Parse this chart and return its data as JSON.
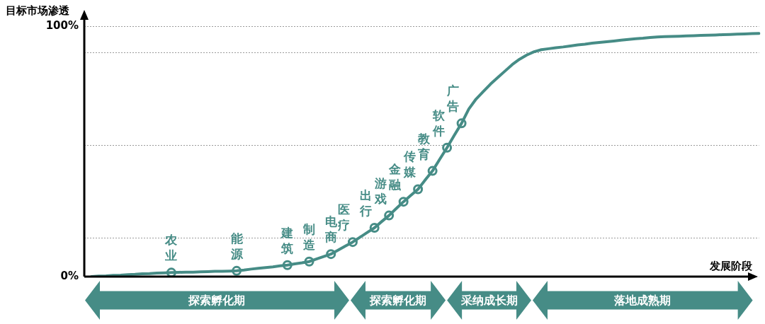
{
  "chart_data": {
    "type": "line",
    "ylabel": "目标市场渗透",
    "xlabel": "发展阶段",
    "categories": [
      null,
      null,
      null,
      null,
      null,
      null,
      null,
      null,
      null,
      null,
      null,
      null,
      null,
      null,
      null,
      null,
      null,
      null,
      null,
      null,
      null,
      null,
      null,
      null,
      null,
      null,
      null,
      null,
      null,
      null,
      null,
      null,
      null,
      null,
      null,
      null,
      null,
      null,
      null,
      null,
      null,
      null,
      null,
      null,
      null,
      null,
      null,
      null,
      null,
      null,
      null,
      null,
      null,
      null,
      null,
      null,
      null,
      null,
      null,
      null,
      null,
      null,
      null,
      null,
      null,
      null,
      null,
      null,
      null,
      null,
      null,
      null,
      null,
      null,
      null,
      null,
      null,
      null,
      null,
      null,
      null,
      null,
      null,
      null,
      null,
      null,
      null,
      null,
      null,
      null,
      null,
      null,
      null,
      null
    ],
    "ylim": [
      0,
      100
    ],
    "yticks": [
      {
        "value": 0,
        "label": "0%"
      },
      {
        "value": 15.5,
        "label": null
      },
      {
        "value": 52.5,
        "label": null
      },
      {
        "value": 89.5,
        "label": null
      },
      {
        "value": 100,
        "label": "100%"
      }
    ],
    "grid": "y",
    "tick_labels": "y",
    "series": [
      {
        "color": "#468c86",
        "marker": "none",
        "line_style": "solid",
        "values": [
          null,
          0,
          0.2,
          0.3,
          0.5,
          0.6,
          0.8,
          0.9,
          1.1,
          1.2,
          1.4,
          1.5,
          1.6,
          1.7,
          1.8,
          1.8,
          1.9,
          2.0,
          2.1,
          2.1,
          2.2,
          2.3,
          2.6,
          3.0,
          3.3,
          3.6,
          3.9,
          4.3,
          4.6,
          5.1,
          5.5,
          6.0,
          7.0,
          8.0,
          9.0,
          10.6,
          12.2,
          13.8,
          15.7,
          17.6,
          19.5,
          22.0,
          24.4,
          27.2,
          29.9,
          32.4,
          34.9,
          38.6,
          42.2,
          46.9,
          51.5,
          56.4,
          61.2,
          66.9,
          70.9,
          73.9,
          76.9,
          79.5,
          82.1,
          84.7,
          86.8,
          88.5,
          89.8,
          90.6,
          91.0,
          91.4,
          91.7,
          92.1,
          92.5,
          92.8,
          93.2,
          93.5,
          93.8,
          94.1,
          94.4,
          94.7,
          95.0,
          95.2,
          95.5,
          95.7,
          95.8,
          95.9,
          96.0,
          96.1,
          96.2,
          96.3,
          96.4,
          96.5,
          96.6,
          96.7,
          96.8,
          96.9,
          97.0,
          97.1
        ]
      },
      {
        "type": "scatter",
        "color": "#468c86",
        "marker": "circle",
        "values": [
          null,
          null,
          null,
          null,
          null,
          null,
          null,
          null,
          null,
          null,
          null,
          null,
          1.6,
          null,
          null,
          null,
          null,
          null,
          null,
          null,
          null,
          2.3,
          null,
          null,
          null,
          null,
          null,
          null,
          4.6,
          null,
          null,
          6.0,
          null,
          null,
          9.0,
          null,
          null,
          13.8,
          null,
          null,
          19.5,
          null,
          24.4,
          null,
          29.9,
          null,
          34.9,
          null,
          42.2,
          null,
          51.5,
          null,
          61.2,
          null,
          null,
          null,
          null,
          null,
          null,
          null,
          null,
          null,
          null,
          null,
          null,
          null,
          null,
          null,
          null,
          null,
          null,
          null,
          null,
          null,
          null,
          null,
          null,
          null,
          null,
          null,
          null,
          null,
          null,
          null,
          null,
          null,
          null,
          null,
          null,
          null,
          null,
          null,
          null,
          null
        ],
        "value_labels": [
          null,
          null,
          null,
          null,
          null,
          null,
          null,
          null,
          null,
          null,
          null,
          null,
          "农业",
          null,
          null,
          null,
          null,
          null,
          null,
          null,
          null,
          "能源",
          null,
          null,
          null,
          null,
          null,
          null,
          "建筑",
          null,
          null,
          "制造",
          null,
          null,
          "电商",
          null,
          null,
          "医疗",
          null,
          null,
          "出行",
          null,
          "游戏",
          null,
          "金融",
          null,
          "传媒",
          null,
          "教育",
          null,
          "软件",
          null,
          "广告",
          null,
          null,
          null,
          null,
          null,
          null,
          null,
          null,
          null,
          null,
          null,
          null,
          null,
          null,
          null,
          null,
          null,
          null,
          null,
          null,
          null,
          null,
          null,
          null,
          null,
          null,
          null,
          null,
          null,
          null,
          null,
          null,
          null,
          null,
          null,
          null,
          null,
          null,
          null,
          null,
          null
        ]
      }
    ],
    "annotations": [
      "探索孵化期",
      "探索孵化期",
      "采纳成长期",
      "落地成熟期"
    ]
  }
}
